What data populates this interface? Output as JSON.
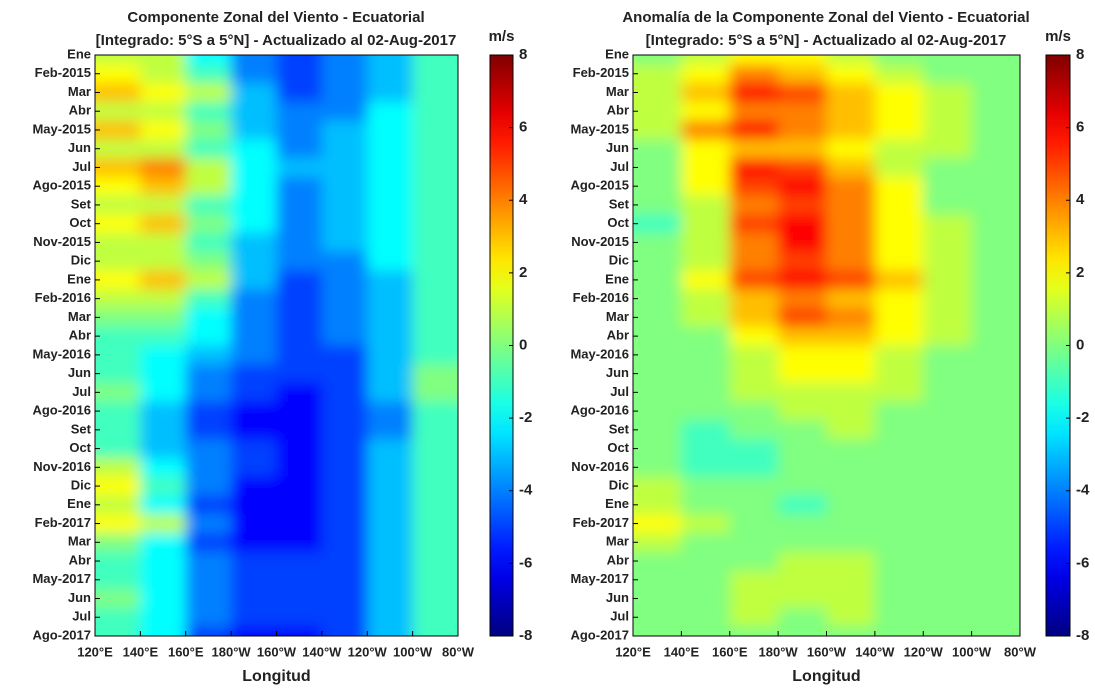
{
  "chart_data": [
    {
      "type": "heatmap",
      "title": "Componente Zonal del Viento - Ecuatorial",
      "subtitle": "[Integrado: 5°S a 5°N] - Actualizado al 02-Aug-2017",
      "xlabel": "Longitud",
      "x": [
        130,
        150,
        170,
        190,
        210,
        230,
        250,
        270
      ],
      "xlim": [
        120,
        280
      ],
      "xticks": [
        {
          "value": 120,
          "label": "120°E"
        },
        {
          "value": 140,
          "label": "140°E"
        },
        {
          "value": 160,
          "label": "160°E"
        },
        {
          "value": 180,
          "label": "180°W"
        },
        {
          "value": 200,
          "label": "160°W"
        },
        {
          "value": 220,
          "label": "140°W"
        },
        {
          "value": 240,
          "label": "120°W"
        },
        {
          "value": 260,
          "label": "100°W"
        },
        {
          "value": 280,
          "label": "80°W"
        }
      ],
      "categories": [
        "Ene",
        "Feb-2015",
        "Mar",
        "Abr",
        "May-2015",
        "Jun",
        "Jul",
        "Ago-2015",
        "Set",
        "Oct",
        "Nov-2015",
        "Dic",
        "Ene",
        "Feb-2016",
        "Mar",
        "Abr",
        "May-2016",
        "Jun",
        "Jul",
        "Ago-2016",
        "Set",
        "Oct",
        "Nov-2016",
        "Dic",
        "Ene",
        "Feb-2017",
        "Mar",
        "Abr",
        "May-2017",
        "Jun",
        "Jul",
        "Ago-2017"
      ],
      "colormap": "jet",
      "colorbar_label": "m/s",
      "clim": [
        -8,
        8
      ],
      "cticks": [
        -8,
        -6,
        -4,
        -2,
        0,
        2,
        4,
        6,
        8
      ],
      "z": [
        [
          1,
          1,
          -2,
          -4,
          -5,
          -4,
          -3,
          -1
        ],
        [
          2,
          1,
          -1,
          -4,
          -5,
          -4,
          -3,
          -1
        ],
        [
          3,
          2,
          1,
          -3,
          -5,
          -4,
          -3,
          -1
        ],
        [
          1,
          1,
          -1,
          -3,
          -4,
          -4,
          -2,
          -1
        ],
        [
          3,
          2,
          0,
          -3,
          -4,
          -3,
          -2,
          -1
        ],
        [
          1,
          1,
          -1,
          -2,
          -4,
          -3,
          -2,
          -1
        ],
        [
          3,
          4,
          1,
          -2,
          -3,
          -3,
          -2,
          -1
        ],
        [
          2,
          3,
          1,
          -2,
          -4,
          -3,
          -2,
          -1
        ],
        [
          1,
          1,
          -1,
          -2,
          -4,
          -3,
          -2,
          -1
        ],
        [
          2,
          3,
          0,
          -2,
          -4,
          -3,
          -2,
          -1
        ],
        [
          1,
          1,
          -1,
          -3,
          -4,
          -3,
          -2,
          -1
        ],
        [
          1,
          1,
          0,
          -3,
          -4,
          -4,
          -2,
          -1
        ],
        [
          2,
          3,
          1,
          -3,
          -5,
          -4,
          -3,
          -1
        ],
        [
          1,
          1,
          -1,
          -4,
          -5,
          -4,
          -3,
          -1
        ],
        [
          0,
          0,
          -2,
          -4,
          -5,
          -4,
          -3,
          -1
        ],
        [
          -1,
          -1,
          -2,
          -4,
          -5,
          -4,
          -3,
          -1
        ],
        [
          -1,
          -2,
          -3,
          -4,
          -5,
          -5,
          -3,
          -1
        ],
        [
          -1,
          -2,
          -4,
          -5,
          -5,
          -5,
          -3,
          0
        ],
        [
          0,
          -2,
          -4,
          -5,
          -6,
          -5,
          -3,
          0
        ],
        [
          -1,
          -3,
          -5,
          -6,
          -6,
          -5,
          -4,
          -1
        ],
        [
          -1,
          -3,
          -5,
          -6,
          -6,
          -5,
          -4,
          -1
        ],
        [
          -1,
          -3,
          -4,
          -5,
          -6,
          -5,
          -3,
          -1
        ],
        [
          1,
          -2,
          -4,
          -5,
          -6,
          -5,
          -3,
          -1
        ],
        [
          2,
          -1,
          -4,
          -6,
          -6,
          -5,
          -3,
          -1
        ],
        [
          1,
          -2,
          -5,
          -6,
          -6,
          -5,
          -3,
          -1
        ],
        [
          2,
          1,
          -4,
          -6,
          -6,
          -5,
          -3,
          -1
        ],
        [
          0,
          -2,
          -5,
          -6,
          -6,
          -5,
          -3,
          -1
        ],
        [
          -1,
          -2,
          -4,
          -5,
          -5,
          -5,
          -3,
          -1
        ],
        [
          -1,
          -2,
          -4,
          -5,
          -5,
          -5,
          -3,
          -1
        ],
        [
          0,
          -2,
          -4,
          -5,
          -5,
          -5,
          -3,
          -1
        ],
        [
          -1,
          -2,
          -4,
          -5,
          -5,
          -5,
          -3,
          -1
        ],
        [
          -1,
          -2,
          -5,
          -6,
          -6,
          -5,
          -3,
          -1
        ]
      ]
    },
    {
      "type": "heatmap",
      "title": "Anomalía de la Componente Zonal del Viento - Ecuatorial",
      "subtitle": "[Integrado: 5°S a 5°N] - Actualizado al 02-Aug-2017",
      "xlabel": "Longitud",
      "x": [
        130,
        150,
        170,
        190,
        210,
        230,
        250,
        270
      ],
      "xlim": [
        120,
        280
      ],
      "xticks": [
        {
          "value": 120,
          "label": "120°E"
        },
        {
          "value": 140,
          "label": "140°E"
        },
        {
          "value": 160,
          "label": "160°E"
        },
        {
          "value": 180,
          "label": "180°W"
        },
        {
          "value": 200,
          "label": "160°W"
        },
        {
          "value": 220,
          "label": "140°W"
        },
        {
          "value": 240,
          "label": "120°W"
        },
        {
          "value": 260,
          "label": "100°W"
        },
        {
          "value": 280,
          "label": "80°W"
        }
      ],
      "categories": [
        "Ene",
        "Feb-2015",
        "Mar",
        "Abr",
        "May-2015",
        "Jun",
        "Jul",
        "Ago-2015",
        "Set",
        "Oct",
        "Nov-2015",
        "Dic",
        "Ene",
        "Feb-2016",
        "Mar",
        "Abr",
        "May-2016",
        "Jun",
        "Jul",
        "Ago-2016",
        "Set",
        "Oct",
        "Nov-2016",
        "Dic",
        "Ene",
        "Feb-2017",
        "Mar",
        "Abr",
        "May-2017",
        "Jun",
        "Jul",
        "Ago-2017"
      ],
      "colormap": "jet",
      "colorbar_label": "m/s",
      "clim": [
        -8,
        8
      ],
      "cticks": [
        -8,
        -6,
        -4,
        -2,
        0,
        2,
        4,
        6,
        8
      ],
      "z": [
        [
          0,
          1,
          2,
          2,
          1,
          0,
          0,
          0
        ],
        [
          1,
          2,
          4,
          3,
          2,
          1,
          0,
          0
        ],
        [
          1,
          3,
          6,
          5,
          3,
          2,
          1,
          0
        ],
        [
          1,
          2,
          4,
          4,
          3,
          2,
          1,
          0
        ],
        [
          1,
          4,
          6,
          4,
          3,
          2,
          1,
          0
        ],
        [
          0,
          2,
          3,
          3,
          2,
          1,
          1,
          0
        ],
        [
          0,
          2,
          6,
          5,
          3,
          1,
          0,
          0
        ],
        [
          0,
          2,
          5,
          6,
          4,
          2,
          0,
          0
        ],
        [
          0,
          1,
          4,
          5,
          4,
          2,
          0,
          0
        ],
        [
          -1,
          1,
          5,
          6,
          4,
          2,
          1,
          0
        ],
        [
          0,
          1,
          4,
          6,
          4,
          2,
          1,
          0
        ],
        [
          0,
          1,
          4,
          5,
          4,
          2,
          1,
          0
        ],
        [
          0,
          2,
          5,
          6,
          5,
          3,
          1,
          0
        ],
        [
          0,
          1,
          3,
          4,
          3,
          2,
          1,
          0
        ],
        [
          0,
          1,
          3,
          5,
          4,
          2,
          1,
          0
        ],
        [
          0,
          0,
          2,
          3,
          3,
          2,
          1,
          0
        ],
        [
          0,
          0,
          1,
          2,
          2,
          1,
          0,
          0
        ],
        [
          0,
          0,
          1,
          2,
          2,
          1,
          0,
          0
        ],
        [
          0,
          0,
          1,
          1,
          1,
          1,
          0,
          0
        ],
        [
          0,
          0,
          0,
          1,
          1,
          0,
          0,
          0
        ],
        [
          0,
          -1,
          0,
          0,
          1,
          0,
          0,
          0
        ],
        [
          0,
          -1,
          -1,
          0,
          0,
          0,
          0,
          0
        ],
        [
          0,
          -1,
          -1,
          0,
          0,
          0,
          0,
          0
        ],
        [
          1,
          0,
          0,
          0,
          0,
          0,
          0,
          0
        ],
        [
          1,
          0,
          0,
          -1,
          0,
          0,
          0,
          0
        ],
        [
          2,
          1,
          0,
          0,
          0,
          0,
          0,
          0
        ],
        [
          1,
          0,
          0,
          0,
          0,
          0,
          0,
          0
        ],
        [
          0,
          0,
          0,
          1,
          1,
          0,
          0,
          0
        ],
        [
          0,
          0,
          1,
          1,
          1,
          0,
          0,
          0
        ],
        [
          0,
          0,
          1,
          1,
          1,
          0,
          0,
          0
        ],
        [
          0,
          0,
          1,
          0,
          1,
          0,
          0,
          0
        ],
        [
          0,
          0,
          0,
          0,
          0,
          0,
          0,
          0
        ]
      ]
    }
  ]
}
